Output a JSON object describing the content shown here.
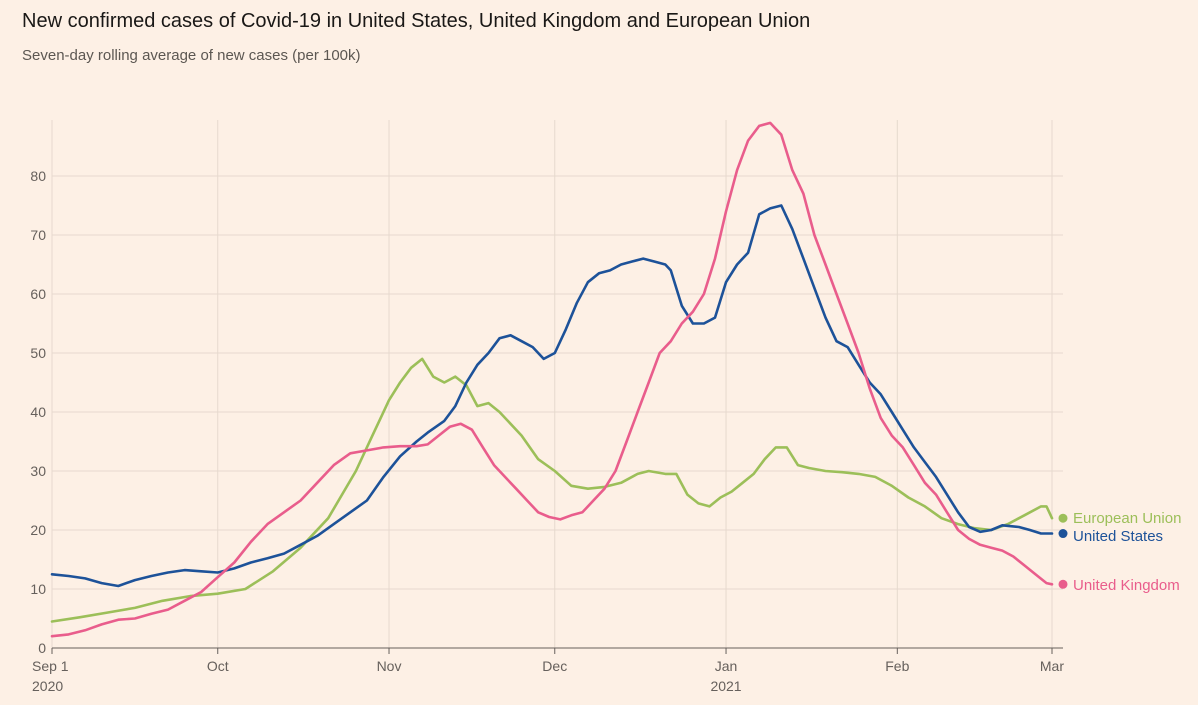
{
  "title": "New confirmed cases of Covid-19 in United States, United Kingdom and European Union",
  "subtitle": "Seven-day rolling average of new cases (per 100k)",
  "chart_data": {
    "type": "line",
    "title": "New confirmed cases of Covid-19 in United States, United Kingdom and European Union",
    "subtitle": "Seven-day rolling average of new cases (per 100k)",
    "xlabel": "",
    "ylabel": "",
    "x_unit": "days since 1 Sep 2020",
    "xlim": [
      0,
      181
    ],
    "ylim": [
      0,
      90
    ],
    "y_ticks": [
      0,
      10,
      20,
      30,
      40,
      50,
      60,
      70,
      80
    ],
    "x_ticks": [
      {
        "day": 0,
        "label": "Sep 1",
        "sublabel": "2020"
      },
      {
        "day": 30,
        "label": "Oct",
        "sublabel": ""
      },
      {
        "day": 61,
        "label": "Nov",
        "sublabel": ""
      },
      {
        "day": 91,
        "label": "Dec",
        "sublabel": ""
      },
      {
        "day": 122,
        "label": "Jan",
        "sublabel": "2021"
      },
      {
        "day": 153,
        "label": "Feb",
        "sublabel": ""
      },
      {
        "day": 181,
        "label": "Mar",
        "sublabel": ""
      }
    ],
    "grid": true,
    "legend": "end-of-line labels, right",
    "series": [
      {
        "name": "European Union",
        "color": "#9cbf59",
        "points": [
          [
            0,
            4.5
          ],
          [
            5,
            5.2
          ],
          [
            10,
            6
          ],
          [
            15,
            6.8
          ],
          [
            20,
            8
          ],
          [
            25,
            8.8
          ],
          [
            30,
            9.2
          ],
          [
            35,
            10
          ],
          [
            40,
            13
          ],
          [
            45,
            17
          ],
          [
            50,
            22
          ],
          [
            55,
            30
          ],
          [
            58,
            36
          ],
          [
            61,
            42
          ],
          [
            63,
            45
          ],
          [
            65,
            47.5
          ],
          [
            67,
            49
          ],
          [
            69,
            46
          ],
          [
            71,
            45
          ],
          [
            73,
            46
          ],
          [
            75,
            44.5
          ],
          [
            77,
            41
          ],
          [
            79,
            41.5
          ],
          [
            81,
            40
          ],
          [
            85,
            36
          ],
          [
            88,
            32
          ],
          [
            91,
            30
          ],
          [
            94,
            27.5
          ],
          [
            97,
            27
          ],
          [
            100,
            27.3
          ],
          [
            103,
            28
          ],
          [
            106,
            29.5
          ],
          [
            108,
            30
          ],
          [
            111,
            29.5
          ],
          [
            113,
            29.5
          ],
          [
            115,
            26
          ],
          [
            117,
            24.5
          ],
          [
            119,
            24
          ],
          [
            121,
            25.5
          ],
          [
            123,
            26.5
          ],
          [
            125,
            28
          ],
          [
            127,
            29.5
          ],
          [
            129,
            32
          ],
          [
            131,
            34
          ],
          [
            133,
            34
          ],
          [
            135,
            31
          ],
          [
            137,
            30.5
          ],
          [
            140,
            30
          ],
          [
            143,
            29.8
          ],
          [
            146,
            29.5
          ],
          [
            149,
            29
          ],
          [
            152,
            27.5
          ],
          [
            155,
            25.5
          ],
          [
            158,
            24
          ],
          [
            161,
            22
          ],
          [
            164,
            21
          ],
          [
            167,
            20.3
          ],
          [
            170,
            20
          ],
          [
            173,
            21
          ],
          [
            176,
            22.5
          ],
          [
            179,
            24
          ],
          [
            180,
            24
          ],
          [
            181,
            22
          ]
        ]
      },
      {
        "name": "United States",
        "color": "#1d5299",
        "points": [
          [
            0,
            12.5
          ],
          [
            3,
            12.2
          ],
          [
            6,
            11.8
          ],
          [
            9,
            11
          ],
          [
            12,
            10.5
          ],
          [
            15,
            11.5
          ],
          [
            18,
            12.2
          ],
          [
            21,
            12.8
          ],
          [
            24,
            13.2
          ],
          [
            27,
            13
          ],
          [
            30,
            12.8
          ],
          [
            33,
            13.5
          ],
          [
            36,
            14.5
          ],
          [
            39,
            15.2
          ],
          [
            42,
            16
          ],
          [
            45,
            17.5
          ],
          [
            48,
            19
          ],
          [
            51,
            21
          ],
          [
            54,
            23
          ],
          [
            57,
            25
          ],
          [
            60,
            29
          ],
          [
            63,
            32.5
          ],
          [
            66,
            35
          ],
          [
            68,
            36.5
          ],
          [
            71,
            38.5
          ],
          [
            73,
            41
          ],
          [
            75,
            45
          ],
          [
            77,
            48
          ],
          [
            79,
            50
          ],
          [
            81,
            52.5
          ],
          [
            83,
            53
          ],
          [
            85,
            52
          ],
          [
            87,
            51
          ],
          [
            89,
            49
          ],
          [
            91,
            50
          ],
          [
            93,
            54
          ],
          [
            95,
            58.5
          ],
          [
            97,
            62
          ],
          [
            99,
            63.5
          ],
          [
            101,
            64
          ],
          [
            103,
            65
          ],
          [
            105,
            65.5
          ],
          [
            107,
            66
          ],
          [
            109,
            65.5
          ],
          [
            111,
            65
          ],
          [
            112,
            64
          ],
          [
            114,
            58
          ],
          [
            116,
            55
          ],
          [
            118,
            55
          ],
          [
            120,
            56
          ],
          [
            122,
            62
          ],
          [
            124,
            65
          ],
          [
            126,
            67
          ],
          [
            128,
            73.5
          ],
          [
            130,
            74.5
          ],
          [
            132,
            75
          ],
          [
            134,
            71
          ],
          [
            136,
            66
          ],
          [
            138,
            61
          ],
          [
            140,
            56
          ],
          [
            142,
            52
          ],
          [
            144,
            51
          ],
          [
            146,
            48
          ],
          [
            148,
            45
          ],
          [
            150,
            43
          ],
          [
            152,
            40
          ],
          [
            154,
            37
          ],
          [
            156,
            34
          ],
          [
            158,
            31.5
          ],
          [
            160,
            29
          ],
          [
            162,
            26
          ],
          [
            164,
            23
          ],
          [
            166,
            20.5
          ],
          [
            168,
            19.7
          ],
          [
            170,
            20
          ],
          [
            172,
            20.8
          ],
          [
            175,
            20.5
          ],
          [
            177,
            20
          ],
          [
            179,
            19.4
          ],
          [
            181,
            19.4
          ]
        ]
      },
      {
        "name": "United Kingdom",
        "color": "#e95d8c",
        "points": [
          [
            0,
            2
          ],
          [
            3,
            2.3
          ],
          [
            6,
            3
          ],
          [
            9,
            4
          ],
          [
            12,
            4.8
          ],
          [
            15,
            5
          ],
          [
            18,
            5.8
          ],
          [
            21,
            6.5
          ],
          [
            24,
            8
          ],
          [
            27,
            9.5
          ],
          [
            30,
            12
          ],
          [
            33,
            14.5
          ],
          [
            36,
            18
          ],
          [
            39,
            21
          ],
          [
            42,
            23
          ],
          [
            45,
            25
          ],
          [
            48,
            28
          ],
          [
            51,
            31
          ],
          [
            54,
            33
          ],
          [
            57,
            33.5
          ],
          [
            60,
            34
          ],
          [
            63,
            34.2
          ],
          [
            66,
            34.2
          ],
          [
            68,
            34.5
          ],
          [
            70,
            36
          ],
          [
            72,
            37.5
          ],
          [
            74,
            38
          ],
          [
            76,
            37
          ],
          [
            78,
            34
          ],
          [
            80,
            31
          ],
          [
            82,
            29
          ],
          [
            84,
            27
          ],
          [
            86,
            25
          ],
          [
            88,
            23
          ],
          [
            90,
            22.2
          ],
          [
            92,
            21.8
          ],
          [
            94,
            22.5
          ],
          [
            96,
            23
          ],
          [
            98,
            25
          ],
          [
            100,
            27
          ],
          [
            102,
            30
          ],
          [
            104,
            35
          ],
          [
            106,
            40
          ],
          [
            108,
            45
          ],
          [
            110,
            50
          ],
          [
            112,
            52
          ],
          [
            114,
            55
          ],
          [
            116,
            57
          ],
          [
            118,
            60
          ],
          [
            120,
            66
          ],
          [
            122,
            74
          ],
          [
            124,
            81
          ],
          [
            126,
            86
          ],
          [
            128,
            88.5
          ],
          [
            130,
            89
          ],
          [
            132,
            87
          ],
          [
            134,
            81
          ],
          [
            136,
            77
          ],
          [
            138,
            70
          ],
          [
            140,
            65
          ],
          [
            142,
            60
          ],
          [
            144,
            55
          ],
          [
            146,
            50
          ],
          [
            148,
            44
          ],
          [
            150,
            39
          ],
          [
            152,
            36
          ],
          [
            154,
            34
          ],
          [
            156,
            31
          ],
          [
            158,
            28
          ],
          [
            160,
            26
          ],
          [
            162,
            23
          ],
          [
            164,
            20
          ],
          [
            166,
            18.5
          ],
          [
            168,
            17.5
          ],
          [
            170,
            17
          ],
          [
            172,
            16.5
          ],
          [
            174,
            15.5
          ],
          [
            176,
            14
          ],
          [
            178,
            12.5
          ],
          [
            180,
            11
          ],
          [
            181,
            10.8
          ]
        ]
      }
    ]
  }
}
